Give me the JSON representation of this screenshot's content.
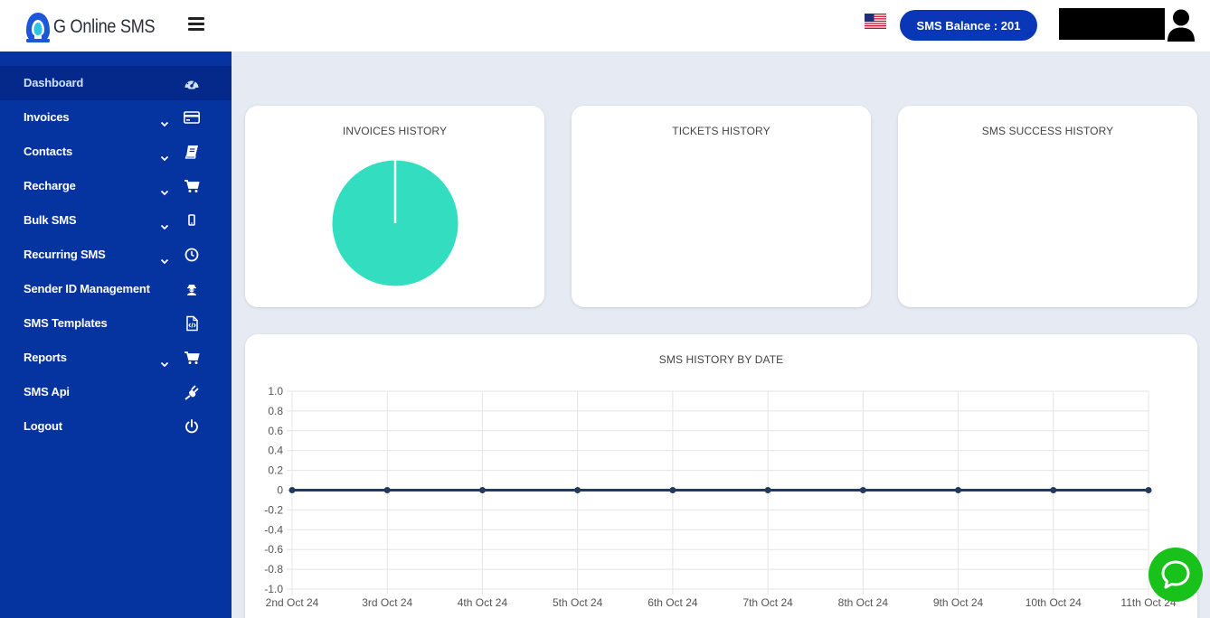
{
  "brand": {
    "name": "G Online SMS"
  },
  "sidebar": {
    "items": [
      {
        "label": "Dashboard",
        "icon": "dashboard-icon",
        "has_submenu": false,
        "active": true
      },
      {
        "label": "Invoices",
        "icon": "credit-card-icon",
        "has_submenu": true
      },
      {
        "label": "Contacts",
        "icon": "address-book-icon",
        "has_submenu": true
      },
      {
        "label": "Recharge",
        "icon": "cart-icon",
        "has_submenu": true
      },
      {
        "label": "Bulk SMS",
        "icon": "mobile-icon",
        "has_submenu": true
      },
      {
        "label": "Recurring SMS",
        "icon": "clock-icon",
        "has_submenu": true
      },
      {
        "label": "Sender ID Management",
        "icon": "user-secret-icon",
        "has_submenu": false
      },
      {
        "label": "SMS Templates",
        "icon": "file-code-icon",
        "has_submenu": false
      },
      {
        "label": "Reports",
        "icon": "cart-icon",
        "has_submenu": true
      },
      {
        "label": "SMS Api",
        "icon": "plug-icon",
        "has_submenu": false
      },
      {
        "label": "Logout",
        "icon": "power-icon",
        "has_submenu": false
      }
    ]
  },
  "header": {
    "language_flag": "us-flag-icon",
    "balance_label": "SMS Balance : 201"
  },
  "cards": {
    "invoices": {
      "title": "INVOICES HISTORY"
    },
    "tickets": {
      "title": "TICKETS HISTORY"
    },
    "sms_success": {
      "title": "SMS SUCCESS HISTORY"
    },
    "sms_by_date": {
      "title": "SMS HISTORY BY DATE"
    }
  },
  "chart_data": [
    {
      "type": "pie",
      "title": "INVOICES HISTORY",
      "values": [
        1
      ],
      "colors": [
        "#33ddc0"
      ]
    },
    {
      "type": "line",
      "title": "SMS HISTORY BY DATE",
      "x": [
        "2nd Oct 24",
        "3rd Oct 24",
        "4th Oct 24",
        "5th Oct 24",
        "6th Oct 24",
        "7th Oct 24",
        "8th Oct 24",
        "9th Oct 24",
        "10th Oct 24",
        "11th Oct 24"
      ],
      "series": [
        {
          "values": [
            0,
            0,
            0,
            0,
            0,
            0,
            0,
            0,
            0,
            0
          ],
          "color": "#223a5e"
        }
      ],
      "yticks": [
        "1.0",
        "0.8",
        "0.6",
        "0.4",
        "0.2",
        "0",
        "-0.2",
        "-0.4",
        "-0.6",
        "-0.8",
        "-1.0"
      ],
      "ylim": [
        -1,
        1
      ],
      "grid": true
    }
  ],
  "colors": {
    "sidebar": "#0533a0",
    "accent": "#0a37b8",
    "pie": "#33ddc0",
    "chat": "#19c21a"
  }
}
